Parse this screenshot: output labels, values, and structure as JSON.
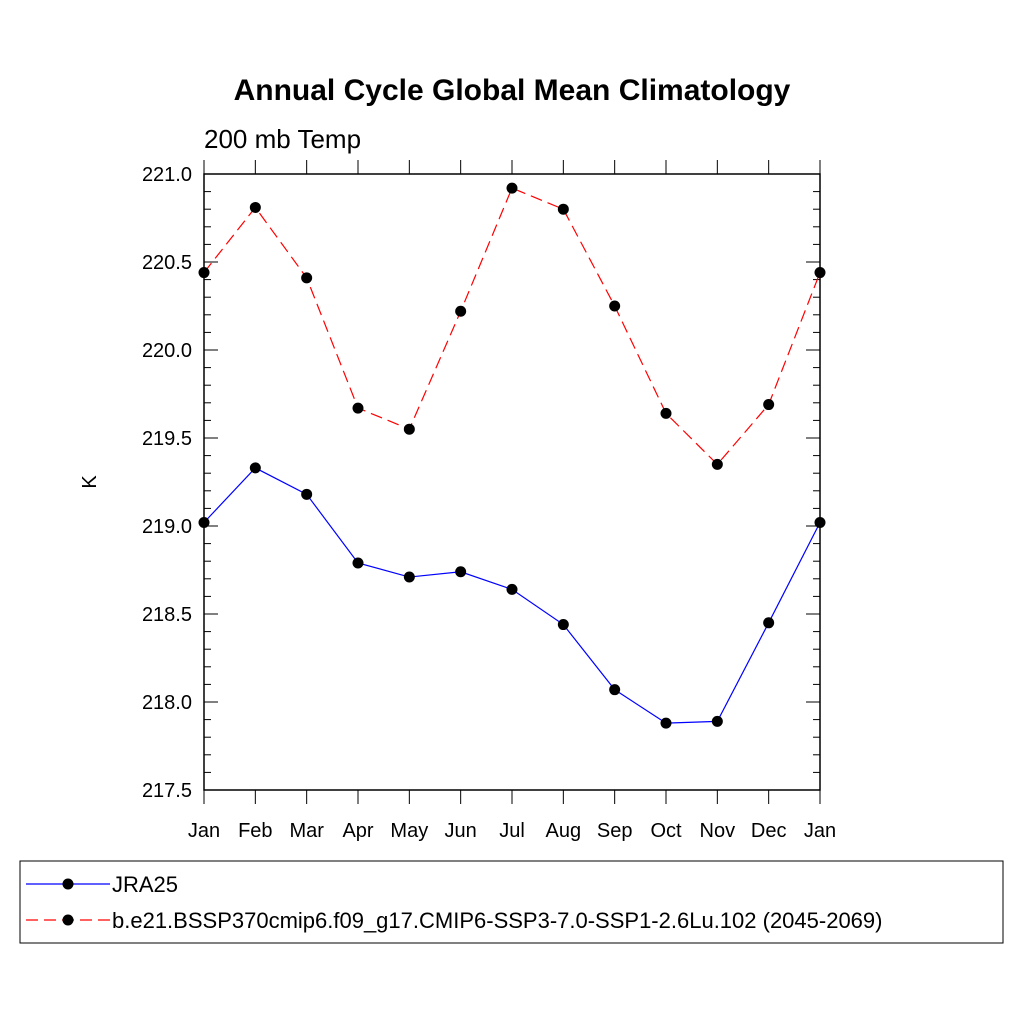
{
  "chart_data": {
    "type": "line",
    "title": "Annual Cycle Global Mean Climatology",
    "subtitle": "200 mb Temp",
    "xlabel": "",
    "ylabel": "K",
    "categories": [
      "Jan",
      "Feb",
      "Mar",
      "Apr",
      "May",
      "Jun",
      "Jul",
      "Aug",
      "Sep",
      "Oct",
      "Nov",
      "Dec",
      "Jan"
    ],
    "ylim": [
      217.5,
      221.0
    ],
    "yticks": [
      "221.0",
      "220.5",
      "220.0",
      "219.5",
      "219.0",
      "218.5",
      "218.0",
      "217.5"
    ],
    "ytick_values": [
      221.0,
      220.5,
      220.0,
      219.5,
      219.0,
      218.5,
      218.0,
      217.5
    ],
    "grid": false,
    "legend_position": "bottom",
    "series": [
      {
        "name": "JRA25",
        "color": "#0000ff",
        "style": "solid",
        "marker": "filled-circle",
        "values": [
          219.02,
          219.33,
          219.18,
          218.79,
          218.71,
          218.74,
          218.64,
          218.44,
          218.07,
          217.88,
          217.89,
          218.45,
          219.02
        ]
      },
      {
        "name": "b.e21.BSSP370cmip6.f09_g17.CMIP6-SSP3-7.0-SSP1-2.6Lu.102 (2045-2069)",
        "color": "#ff0000",
        "style": "dashed",
        "marker": "filled-circle",
        "values": [
          220.44,
          220.81,
          220.41,
          219.67,
          219.55,
          220.22,
          220.92,
          220.8,
          220.25,
          219.64,
          219.35,
          219.69,
          220.44
        ]
      }
    ]
  }
}
